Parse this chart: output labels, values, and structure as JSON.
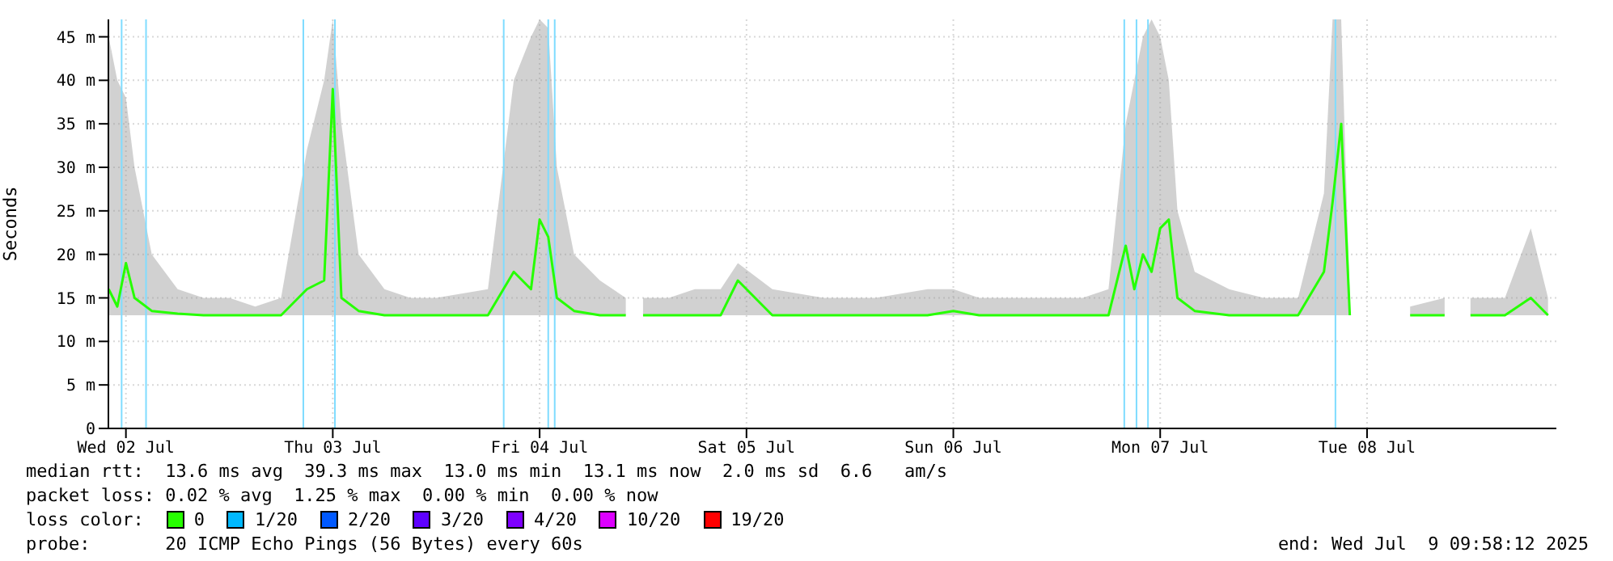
{
  "chart_data": {
    "type": "line",
    "ylabel": "Seconds",
    "legend_title": "loss color:",
    "legend": "bottom",
    "grid": true,
    "xlim": [
      "2025-07-02T09:58",
      "2025-07-09T09:58"
    ],
    "xticks": [
      {
        "value": "2025-07-02T12:00",
        "label": "Wed 02 Jul"
      },
      {
        "value": "2025-07-03T12:00",
        "label": "Thu 03 Jul"
      },
      {
        "value": "2025-07-04T12:00",
        "label": "Fri 04 Jul"
      },
      {
        "value": "2025-07-05T12:00",
        "label": "Sat 05 Jul"
      },
      {
        "value": "2025-07-06T12:00",
        "label": "Sun 06 Jul"
      },
      {
        "value": "2025-07-07T12:00",
        "label": "Mon 07 Jul"
      },
      {
        "value": "2025-07-08T12:00",
        "label": "Tue 08 Jul"
      }
    ],
    "ylim": [
      0,
      47
    ],
    "yticks": [
      0,
      {
        "value": 5,
        "label": "5 m"
      },
      {
        "value": 10,
        "label": "10 m"
      },
      {
        "value": 15,
        "label": "15 m"
      },
      {
        "value": 20,
        "label": "20 m"
      },
      {
        "value": 25,
        "label": "25 m"
      },
      {
        "value": 30,
        "label": "30 m"
      },
      {
        "value": 35,
        "label": "35 m"
      },
      {
        "value": 40,
        "label": "40 m"
      },
      {
        "value": 45,
        "label": "45 m"
      }
    ],
    "x": [
      "2025-07-02T10:00",
      "2025-07-02T11:00",
      "2025-07-02T12:00",
      "2025-07-02T13:00",
      "2025-07-02T15:00",
      "2025-07-02T18:00",
      "2025-07-02T21:00",
      "2025-07-03T00:00",
      "2025-07-03T03:00",
      "2025-07-03T06:00",
      "2025-07-03T09:00",
      "2025-07-03T11:00",
      "2025-07-03T12:00",
      "2025-07-03T13:00",
      "2025-07-03T15:00",
      "2025-07-03T18:00",
      "2025-07-03T21:00",
      "2025-07-04T00:00",
      "2025-07-04T06:00",
      "2025-07-04T09:00",
      "2025-07-04T11:00",
      "2025-07-04T12:00",
      "2025-07-04T13:00",
      "2025-07-04T14:00",
      "2025-07-04T16:00",
      "2025-07-04T19:00",
      "2025-07-04T22:00",
      "2025-07-04T23:00",
      "2025-07-05T00:00",
      "2025-07-05T03:00",
      "2025-07-05T06:00",
      "2025-07-05T09:00",
      "2025-07-05T11:00",
      "2025-07-05T15:00",
      "2025-07-05T21:00",
      "2025-07-06T03:00",
      "2025-07-06T09:00",
      "2025-07-06T12:00",
      "2025-07-06T15:00",
      "2025-07-06T21:00",
      "2025-07-07T03:00",
      "2025-07-07T06:00",
      "2025-07-07T08:00",
      "2025-07-07T09:00",
      "2025-07-07T10:00",
      "2025-07-07T11:00",
      "2025-07-07T12:00",
      "2025-07-07T13:00",
      "2025-07-07T14:00",
      "2025-07-07T16:00",
      "2025-07-07T20:00",
      "2025-07-08T00:00",
      "2025-07-08T04:00",
      "2025-07-08T07:00",
      "2025-07-08T08:00",
      "2025-07-08T09:00",
      "2025-07-08T10:00",
      "2025-07-08T12:00",
      "2025-07-08T15:00",
      "2025-07-08T17:00",
      "2025-07-08T21:00",
      "2025-07-08T22:30",
      "2025-07-09T00:00",
      "2025-07-09T04:00",
      "2025-07-09T07:00",
      "2025-07-09T09:00"
    ],
    "series": [
      {
        "name": "0",
        "color": "#26ff00",
        "values": [
          16,
          14,
          19,
          15,
          13.5,
          13.2,
          13,
          13,
          13,
          13,
          16,
          17,
          39,
          15,
          13.5,
          13,
          13,
          13,
          13,
          18,
          16,
          24,
          22,
          15,
          13.5,
          13,
          13,
          null,
          13,
          13,
          13,
          13,
          17,
          13,
          13,
          13,
          13,
          13.5,
          13,
          13,
          13,
          13,
          21,
          16,
          20,
          18,
          23,
          24,
          15,
          13.5,
          13,
          13,
          13,
          18,
          26,
          35,
          13,
          null,
          null,
          13,
          13,
          null,
          13,
          13,
          15,
          13
        ],
        "lower": [
          13,
          13,
          13,
          13,
          13,
          13,
          13,
          13,
          13,
          13,
          13,
          13,
          13,
          13,
          13,
          13,
          13,
          13,
          13,
          13,
          13,
          13,
          13,
          13,
          13,
          13,
          13,
          null,
          13,
          13,
          13,
          13,
          13,
          13,
          13,
          13,
          13,
          13,
          13,
          13,
          13,
          13,
          13,
          13,
          13,
          13,
          13,
          13,
          13,
          13,
          13,
          13,
          13,
          13,
          13,
          13,
          13,
          null,
          null,
          13,
          13,
          null,
          13,
          13,
          13,
          13
        ],
        "upper": [
          45,
          40,
          38,
          30,
          20,
          16,
          15,
          15,
          14,
          15,
          32,
          40,
          47,
          35,
          20,
          16,
          15,
          15,
          16,
          40,
          45,
          47,
          46,
          30,
          20,
          17,
          15,
          null,
          15,
          15,
          16,
          16,
          19,
          16,
          15,
          15,
          16,
          16,
          15,
          15,
          15,
          16,
          35,
          40,
          45,
          47,
          45,
          40,
          25,
          18,
          16,
          15,
          15,
          27,
          47,
          47,
          15,
          null,
          null,
          14,
          15,
          null,
          15,
          15,
          23,
          15
        ]
      },
      {
        "name": "1/20",
        "color": "#00b8ff",
        "values": [
          null,
          null,
          null,
          null,
          null,
          null,
          null,
          null,
          null,
          null,
          null,
          null,
          null,
          null,
          null,
          null,
          null,
          null,
          null,
          null,
          null,
          null,
          null,
          null,
          null,
          null,
          null,
          null,
          null,
          null,
          null,
          null,
          null,
          null,
          null,
          null,
          null,
          null,
          null,
          null,
          null,
          null,
          null,
          null,
          null,
          null,
          null,
          null,
          null,
          null,
          null,
          null,
          null,
          null,
          null,
          null,
          null,
          null,
          null,
          null,
          null,
          null,
          null,
          null,
          null,
          null
        ]
      },
      {
        "name": "2/20",
        "color": "#0059ff",
        "values": [
          null,
          null,
          null,
          null,
          null,
          null,
          null,
          null,
          null,
          null,
          null,
          null,
          null,
          null,
          null,
          null,
          null,
          null,
          null,
          null,
          null,
          null,
          null,
          null,
          null,
          null,
          null,
          null,
          null,
          null,
          null,
          null,
          null,
          null,
          null,
          null,
          null,
          null,
          null,
          null,
          null,
          null,
          null,
          null,
          null,
          null,
          null,
          null,
          null,
          null,
          null,
          null,
          null,
          null,
          null,
          null,
          null,
          null,
          null,
          null,
          null,
          null,
          null,
          null,
          null,
          null
        ]
      },
      {
        "name": "3/20",
        "color": "#5e00ff",
        "values": [
          null,
          null,
          null,
          null,
          null,
          null,
          null,
          null,
          null,
          null,
          null,
          null,
          null,
          null,
          null,
          null,
          null,
          null,
          null,
          null,
          null,
          null,
          null,
          null,
          null,
          null,
          null,
          null,
          null,
          null,
          null,
          null,
          null,
          null,
          null,
          null,
          null,
          null,
          null,
          null,
          null,
          null,
          null,
          null,
          null,
          null,
          null,
          null,
          null,
          null,
          null,
          null,
          null,
          null,
          null,
          null,
          null,
          null,
          null,
          null,
          null,
          null,
          null,
          null,
          null,
          null
        ]
      },
      {
        "name": "4/20",
        "color": "#7e00ff",
        "values": [
          null,
          null,
          null,
          null,
          null,
          null,
          null,
          null,
          null,
          null,
          null,
          null,
          null,
          null,
          null,
          null,
          null,
          null,
          null,
          null,
          null,
          null,
          null,
          null,
          null,
          null,
          null,
          null,
          null,
          null,
          null,
          null,
          null,
          null,
          null,
          null,
          null,
          null,
          null,
          null,
          null,
          null,
          null,
          null,
          null,
          null,
          null,
          null,
          null,
          null,
          null,
          null,
          null,
          null,
          null,
          null,
          null,
          null,
          null,
          null,
          null,
          null,
          null,
          null,
          null,
          null
        ]
      },
      {
        "name": "10/20",
        "color": "#dd00ff",
        "values": [
          null,
          null,
          null,
          null,
          null,
          null,
          null,
          null,
          null,
          null,
          null,
          null,
          null,
          null,
          null,
          null,
          null,
          null,
          null,
          null,
          null,
          null,
          null,
          null,
          null,
          null,
          null,
          null,
          null,
          null,
          null,
          null,
          null,
          null,
          null,
          null,
          null,
          null,
          null,
          null,
          null,
          null,
          null,
          null,
          null,
          null,
          null,
          null,
          null,
          null,
          null,
          null,
          null,
          null,
          null,
          null,
          null,
          null,
          null,
          null,
          null,
          null,
          null,
          null,
          null,
          null
        ]
      },
      {
        "name": "19/20",
        "color": "#ff0000",
        "values": [
          null,
          null,
          null,
          null,
          null,
          null,
          null,
          null,
          null,
          null,
          null,
          null,
          null,
          null,
          null,
          null,
          null,
          null,
          null,
          null,
          null,
          null,
          null,
          null,
          null,
          null,
          null,
          null,
          null,
          null,
          null,
          null,
          null,
          null,
          null,
          null,
          null,
          null,
          null,
          null,
          null,
          null,
          null,
          null,
          null,
          null,
          null,
          null,
          null,
          null,
          null,
          null,
          null,
          null,
          null,
          null,
          null,
          null,
          null,
          null,
          null,
          null,
          null,
          null,
          null,
          null
        ]
      }
    ],
    "ref_lines": [
      {
        "axis": "x",
        "value": "2025-07-02T11:30",
        "color": "#7fdcff"
      },
      {
        "axis": "x",
        "value": "2025-07-02T14:20",
        "color": "#7fdcff"
      },
      {
        "axis": "x",
        "value": "2025-07-03T08:35",
        "color": "#7fdcff"
      },
      {
        "axis": "x",
        "value": "2025-07-03T12:15",
        "color": "#7fdcff"
      },
      {
        "axis": "x",
        "value": "2025-07-04T07:50",
        "color": "#7fdcff"
      },
      {
        "axis": "x",
        "value": "2025-07-04T13:00",
        "color": "#7fdcff"
      },
      {
        "axis": "x",
        "value": "2025-07-04T13:45",
        "color": "#7fdcff"
      },
      {
        "axis": "x",
        "value": "2025-07-07T07:50",
        "color": "#7fdcff"
      },
      {
        "axis": "x",
        "value": "2025-07-07T09:15",
        "color": "#7fdcff"
      },
      {
        "axis": "x",
        "value": "2025-07-07T10:35",
        "color": "#7fdcff"
      },
      {
        "axis": "x",
        "value": "2025-07-08T08:20",
        "color": "#7fdcff"
      }
    ],
    "annotations": [
      "median rtt:  13.6 ms avg  39.3 ms max  13.0 ms min  13.1 ms now  2.0 ms sd  6.6   am/s",
      "packet loss: 0.02 % avg  1.25 % max  0.00 % min  0.00 % now",
      "probe:       20 ICMP Echo Pings (56 Bytes) every 60s",
      "end: Wed Jul  9 09:58:12 2025"
    ]
  }
}
